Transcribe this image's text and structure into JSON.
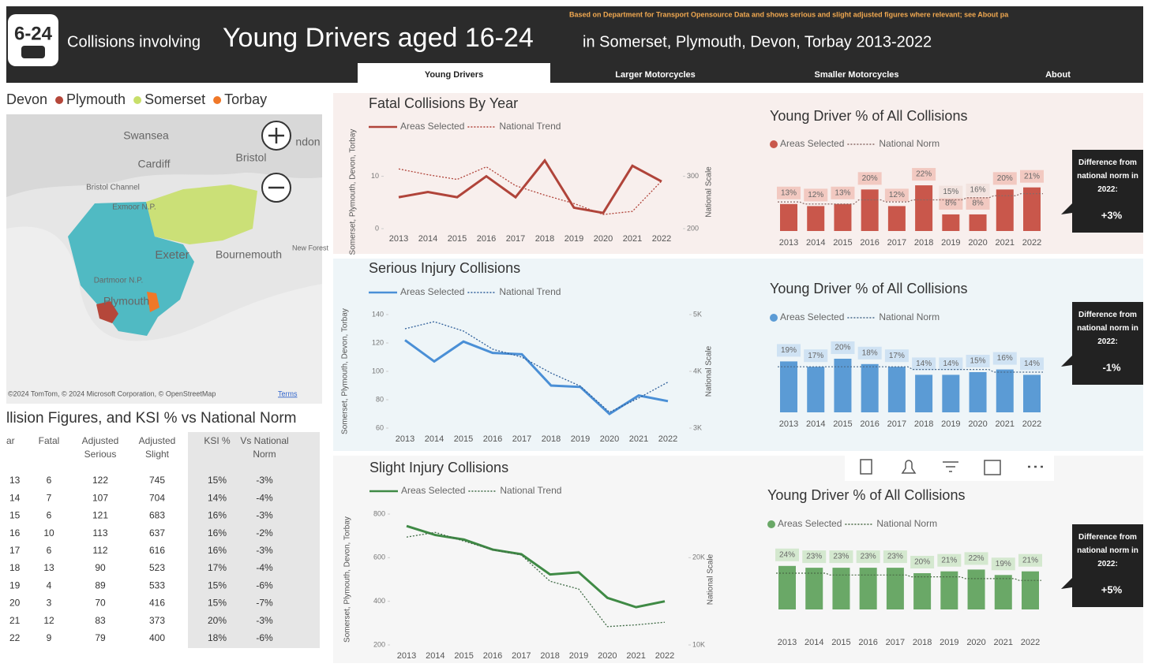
{
  "header": {
    "logo": "6-24",
    "prefix": "Collisions involving",
    "title": "Young Drivers aged 16-24",
    "suffix": "in Somerset, Plymouth, Devon, Torbay 2013-2022",
    "note": "Based on Department for Transport Opensource Data and shows serious and slight adjusted figures where relevant; see About pa"
  },
  "tabs": [
    "Young Drivers",
    "Larger Motorcycles",
    "Smaller Motorcycles",
    "About"
  ],
  "map": {
    "legend": [
      {
        "name": "Devon",
        "color": "#3fb5bf"
      },
      {
        "name": "Plymouth",
        "color": "#b5473a"
      },
      {
        "name": "Somerset",
        "color": "#c8df6a"
      },
      {
        "name": "Torbay",
        "color": "#f07828"
      }
    ],
    "places": [
      "Swansea",
      "ndon",
      "Cardiff",
      "Bristol",
      "Bristol Channel",
      "Exmoor N.P.",
      "Exeter",
      "Bournemouth",
      "New Forest",
      "Dartmoor N.P.",
      "Plymouth"
    ],
    "copyright": "©2024 TomTom, © 2024 Microsoft Corporation, © OpenStreetMap",
    "terms": "Terms"
  },
  "table": {
    "title": "llision Figures, and KSI % vs National Norm",
    "columns": [
      "ar",
      "Fatal",
      "Adjusted Serious",
      "Adjusted Slight",
      "KSI %",
      "Vs National Norm"
    ],
    "rows": [
      [
        "13",
        "6",
        "122",
        "745",
        "15%",
        "-3%"
      ],
      [
        "14",
        "7",
        "107",
        "704",
        "14%",
        "-4%"
      ],
      [
        "15",
        "6",
        "121",
        "683",
        "16%",
        "-3%"
      ],
      [
        "16",
        "10",
        "113",
        "637",
        "16%",
        "-2%"
      ],
      [
        "17",
        "6",
        "112",
        "616",
        "16%",
        "-3%"
      ],
      [
        "18",
        "13",
        "90",
        "523",
        "17%",
        "-4%"
      ],
      [
        "19",
        "4",
        "89",
        "533",
        "15%",
        "-6%"
      ],
      [
        "20",
        "3",
        "70",
        "416",
        "15%",
        "-7%"
      ],
      [
        "21",
        "12",
        "83",
        "373",
        "20%",
        "-3%"
      ],
      [
        "22",
        "9",
        "79",
        "400",
        "18%",
        "-6%"
      ]
    ]
  },
  "chart_data": [
    {
      "type": "line",
      "title": "Fatal Collisions By Year",
      "categories": [
        "2013",
        "2014",
        "2015",
        "2016",
        "2017",
        "2018",
        "2019",
        "2020",
        "2021",
        "2022"
      ],
      "y_label": "Somerset, Plymouth, Devon, Torbay",
      "y2_label": "National Scale",
      "series": [
        {
          "name": "Areas Selected",
          "color": "#b0443a",
          "values": [
            6,
            7,
            6,
            10,
            6,
            13,
            4,
            3,
            12,
            9
          ]
        },
        {
          "name": "National Trend",
          "color": "#b0443a",
          "style": "dotted",
          "axis": "y2",
          "values": [
            314,
            303,
            294,
            318,
            282,
            264,
            248,
            227,
            233,
            291
          ]
        }
      ],
      "ylim": [
        0,
        14
      ],
      "yticks": [
        0,
        10
      ],
      "y2lim": [
        200,
        340
      ],
      "y2ticks": [
        200,
        300
      ]
    },
    {
      "type": "bar",
      "title": "Young Driver % of All Collisions",
      "categories": [
        "2013",
        "2014",
        "2015",
        "2016",
        "2017",
        "2018",
        "2019",
        "2020",
        "2021",
        "2022"
      ],
      "series": [
        {
          "name": "Areas Selected",
          "color": "#c9574b",
          "label_bg": "#f2c9c1",
          "values": [
            13,
            12,
            13,
            20,
            12,
            22,
            8,
            8,
            20,
            21
          ],
          "value_labels": [
            "13%",
            "12%",
            "13%",
            "20%",
            "12%",
            "22%",
            "8%",
            "8%",
            "20%",
            "21%"
          ]
        },
        {
          "name": "National Norm",
          "color": "#8a6a66",
          "style": "dotted",
          "label_bg": "#f2e3df",
          "values": [
            14,
            13,
            13,
            15,
            14,
            15,
            15,
            16,
            17,
            18
          ],
          "value_labels": [
            null,
            null,
            null,
            null,
            null,
            null,
            "15%",
            "16%",
            null,
            null
          ]
        }
      ],
      "ylim": [
        0,
        30
      ],
      "callout": {
        "text": "Difference from national norm in 2022:",
        "value": "+3%"
      }
    },
    {
      "type": "line",
      "title": "Serious Injury Collisions",
      "categories": [
        "2013",
        "2014",
        "2015",
        "2016",
        "2017",
        "2018",
        "2019",
        "2020",
        "2021",
        "2022"
      ],
      "y_label": "Somerset, Plymouth, Devon, Torbay",
      "y2_label": "National Scale",
      "series": [
        {
          "name": "Areas Selected",
          "color": "#4a8fd6",
          "values": [
            122,
            107,
            121,
            113,
            112,
            90,
            89,
            70,
            83,
            79
          ]
        },
        {
          "name": "National Trend",
          "color": "#2f5f9a",
          "style": "dotted",
          "axis": "y2",
          "values": [
            4750,
            4875,
            4710,
            4390,
            4250,
            3970,
            3740,
            3280,
            3530,
            3810
          ]
        }
      ],
      "ylim": [
        60,
        140
      ],
      "yticks": [
        60,
        80,
        100,
        120,
        140
      ],
      "y2lim": [
        3000,
        5000
      ],
      "y2ticks": [
        {
          "value": 3000,
          "label": "3K"
        },
        {
          "value": 4000,
          "label": "4K"
        },
        {
          "value": 5000,
          "label": "5K"
        }
      ]
    },
    {
      "type": "bar",
      "title": "Young Driver % of All Collisions",
      "categories": [
        "2013",
        "2014",
        "2015",
        "2016",
        "2017",
        "2018",
        "2019",
        "2020",
        "2021",
        "2022"
      ],
      "series": [
        {
          "name": "Areas Selected",
          "color": "#5b9bd5",
          "label_bg": "#cfe2f3",
          "values": [
            19,
            17,
            20,
            18,
            17,
            14,
            14,
            15,
            16,
            14
          ],
          "value_labels": [
            "19%",
            "17%",
            "20%",
            "18%",
            "17%",
            "14%",
            "14%",
            "15%",
            "16%",
            "14%"
          ]
        },
        {
          "name": "National Norm",
          "color": "#4a6a8a",
          "style": "dotted",
          "values": [
            17,
            17,
            17,
            17,
            17,
            16,
            16,
            16,
            15,
            15
          ]
        }
      ],
      "ylim": [
        0,
        30
      ],
      "callout": {
        "text": "Difference from national norm in 2022:",
        "value": "-1%"
      }
    },
    {
      "type": "line",
      "title": "Slight Injury Collisions",
      "categories": [
        "2013",
        "2014",
        "2015",
        "2016",
        "2017",
        "2018",
        "2019",
        "2020",
        "2021",
        "2022"
      ],
      "y_label": "Somerset, Plymouth, Devon, Torbay",
      "y2_label": "National Scale",
      "series": [
        {
          "name": "Areas Selected",
          "color": "#3f8a45",
          "values": [
            745,
            704,
            683,
            637,
            616,
            523,
            533,
            416,
            373,
            400
          ]
        },
        {
          "name": "National Trend",
          "color": "#3f6a45",
          "style": "dotted",
          "axis": "y2",
          "values": [
            22360,
            22900,
            21900,
            20900,
            20300,
            17300,
            16400,
            12100,
            12300,
            12600
          ]
        }
      ],
      "ylim": [
        200,
        800
      ],
      "yticks": [
        200,
        400,
        600,
        800
      ],
      "y2lim": [
        10000,
        25000
      ],
      "y2ticks": [
        {
          "value": 10000,
          "label": "10K"
        },
        {
          "value": 20000,
          "label": "20K"
        }
      ]
    },
    {
      "type": "bar",
      "title": "Young Driver % of All Collisions",
      "categories": [
        "2013",
        "2014",
        "2015",
        "2016",
        "2017",
        "2018",
        "2019",
        "2020",
        "2021",
        "2022"
      ],
      "series": [
        {
          "name": "Areas Selected",
          "color": "#6aa867",
          "label_bg": "#d4e8cf",
          "values": [
            24,
            23,
            23,
            23,
            23,
            20,
            21,
            22,
            19,
            21
          ],
          "value_labels": [
            "24%",
            "23%",
            "23%",
            "23%",
            "23%",
            "20%",
            "21%",
            "22%",
            "19%",
            "21%"
          ]
        },
        {
          "name": "National Norm",
          "color": "#4a6a45",
          "style": "dotted",
          "values": [
            20,
            20,
            19,
            19,
            19,
            18,
            18,
            17,
            17,
            16
          ]
        }
      ],
      "ylim": [
        0,
        30
      ],
      "callout": {
        "text": "Difference from national norm in 2022:",
        "value": "+5%"
      }
    }
  ]
}
